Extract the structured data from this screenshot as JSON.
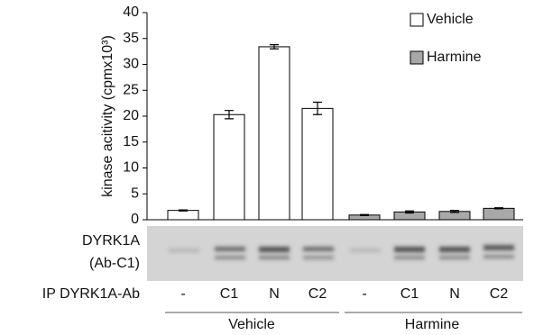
{
  "chart_data": {
    "type": "bar",
    "ylabel": "kinase acitivity (cpmx10³)",
    "categories": [
      "-",
      "C1",
      "N",
      "C2",
      "-",
      "C1",
      "N",
      "C2"
    ],
    "row_label": "IP DYRK1A-Ab",
    "series": [
      {
        "name": "Vehicle",
        "color": "#ffffff",
        "values": [
          1.8,
          20.3,
          33.4,
          21.5,
          null,
          null,
          null,
          null
        ],
        "errors": [
          0.1,
          0.8,
          0.4,
          1.2,
          null,
          null,
          null,
          null
        ]
      },
      {
        "name": "Harmine",
        "color": "#a8a8a8",
        "values": [
          null,
          null,
          null,
          null,
          0.9,
          1.5,
          1.6,
          2.2
        ],
        "errors": [
          null,
          null,
          null,
          null,
          0.1,
          0.2,
          0.2,
          0.1
        ]
      }
    ],
    "ylim": [
      0,
      40
    ],
    "yticks": [
      0,
      5,
      10,
      15,
      20,
      25,
      30,
      35,
      40
    ],
    "legend": "top-right"
  },
  "blot": {
    "labels": [
      "DYRK1A",
      "(Ab-C1)"
    ]
  }
}
